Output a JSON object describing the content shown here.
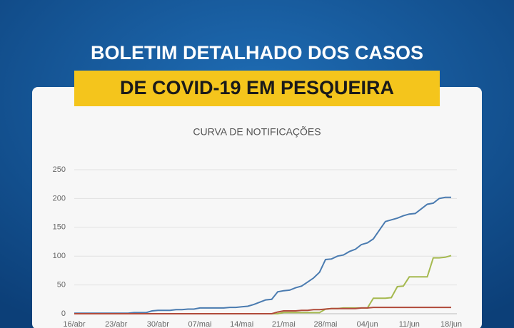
{
  "header": {
    "line1": "BOLETIM DETALHADO DOS CASOS",
    "line2": "DE COVID-19 EM PESQUEIRA"
  },
  "chart_data": {
    "type": "line",
    "title": "CURVA DE NOTIFICAÇÕES",
    "categories": [
      "16/abr",
      null,
      null,
      null,
      null,
      null,
      null,
      "23/abr",
      null,
      null,
      null,
      null,
      null,
      null,
      "30/abr",
      null,
      null,
      null,
      null,
      null,
      null,
      "07/mai",
      null,
      null,
      null,
      null,
      null,
      null,
      "14/mai",
      null,
      null,
      null,
      null,
      null,
      null,
      "21/mai",
      null,
      null,
      null,
      null,
      null,
      null,
      "28/mai",
      null,
      null,
      null,
      null,
      null,
      null,
      "04/jun",
      null,
      null,
      null,
      null,
      null,
      null,
      "11/jun",
      null,
      null,
      null,
      null,
      null,
      null,
      "18/jun"
    ],
    "series": [
      {
        "color": "#4a7bb0",
        "values": [
          1,
          1,
          1,
          1,
          1,
          1,
          1,
          1,
          1,
          1,
          2,
          2,
          2,
          5,
          6,
          6,
          6,
          7,
          7,
          8,
          8,
          10,
          10,
          10,
          10,
          10,
          11,
          11,
          12,
          13,
          16,
          20,
          24,
          25,
          38,
          40,
          41,
          45,
          48,
          55,
          62,
          72,
          94,
          95,
          100,
          102,
          108,
          112,
          120,
          123,
          130,
          145,
          160,
          163,
          166,
          170,
          173,
          174,
          182,
          190,
          192,
          200,
          202,
          202
        ]
      },
      {
        "color": "#a5b94f",
        "values": [
          0,
          0,
          0,
          0,
          0,
          0,
          0,
          0,
          0,
          0,
          0,
          0,
          0,
          0,
          0,
          0,
          0,
          0,
          0,
          0,
          0,
          0,
          0,
          0,
          0,
          0,
          0,
          0,
          0,
          0,
          0,
          0,
          0,
          0,
          0,
          2,
          2,
          2,
          2,
          2,
          2,
          2,
          8,
          9,
          9,
          10,
          10,
          10,
          10,
          10,
          27,
          27,
          27,
          28,
          47,
          48,
          64,
          64,
          64,
          64,
          97,
          97,
          98,
          101
        ]
      },
      {
        "color": "#b04a3a",
        "values": [
          0,
          0,
          0,
          0,
          0,
          0,
          0,
          0,
          0,
          0,
          0,
          0,
          0,
          0,
          0,
          0,
          0,
          0,
          0,
          0,
          0,
          0,
          0,
          0,
          0,
          0,
          0,
          0,
          0,
          0,
          0,
          0,
          0,
          0,
          3,
          5,
          5,
          5,
          6,
          6,
          7,
          7,
          8,
          9,
          9,
          9,
          9,
          9,
          10,
          10,
          11,
          11,
          11,
          11,
          11,
          11,
          11,
          11,
          11,
          11,
          11,
          11,
          11,
          11
        ]
      }
    ],
    "ylim": [
      0,
      250
    ],
    "yticks": [
      0,
      50,
      100,
      150,
      200,
      250
    ],
    "grid": true
  }
}
